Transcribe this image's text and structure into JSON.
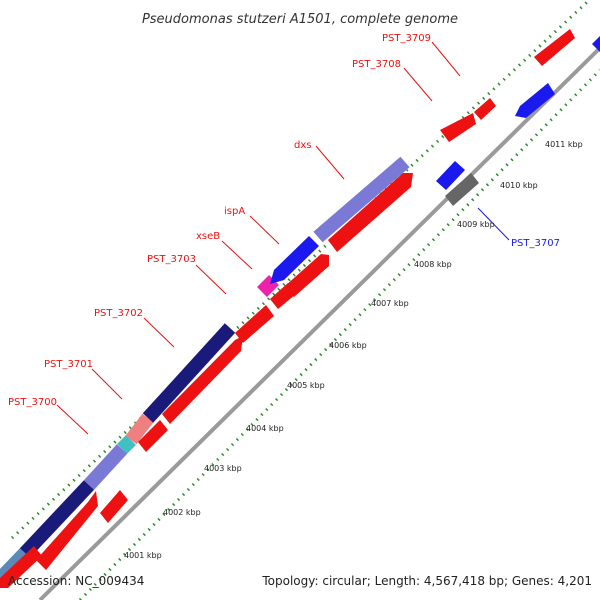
{
  "title": "Pseudomonas stutzeri A1501, complete genome",
  "footer": {
    "accession": "Accession: NC_009434",
    "summary": "Topology: circular; Length: 4,567,418 bp; Genes: 4,201"
  },
  "colors": {
    "forward_genes": "#ee1111",
    "reverse_genes": "#1a1aee",
    "backbone": "#9a9a9a",
    "tick_dots": "#2e8b2e",
    "feature_navy": "#1a1a7a",
    "feature_lavender": "#7a7ad6",
    "feature_pink": "#f08080",
    "feature_teal": "#40c0c0",
    "feature_steel": "#5a8ab8",
    "feature_magenta": "#ee22aa",
    "gene_grey": "#666666"
  },
  "gene_labels": [
    {
      "text": "PST_3709",
      "color": "#ee1111"
    },
    {
      "text": "PST_3708",
      "color": "#ee1111"
    },
    {
      "text": "dxs",
      "color": "#ee1111"
    },
    {
      "text": "ispA",
      "color": "#ee1111"
    },
    {
      "text": "xseB",
      "color": "#ee1111"
    },
    {
      "text": "PST_3703",
      "color": "#ee1111"
    },
    {
      "text": "PST_3702",
      "color": "#ee1111"
    },
    {
      "text": "PST_3701",
      "color": "#ee1111"
    },
    {
      "text": "PST_3700",
      "color": "#ee1111"
    },
    {
      "text": "PST_3707",
      "color": "#1a1aee"
    }
  ],
  "kbp_labels": [
    "4011 kbp",
    "4010 kbp",
    "4009 kbp",
    "4008 kbp",
    "4007 kbp",
    "4006 kbp",
    "4005 kbp",
    "4004 kbp",
    "4003 kbp",
    "4002 kbp",
    "4001 kbp"
  ]
}
